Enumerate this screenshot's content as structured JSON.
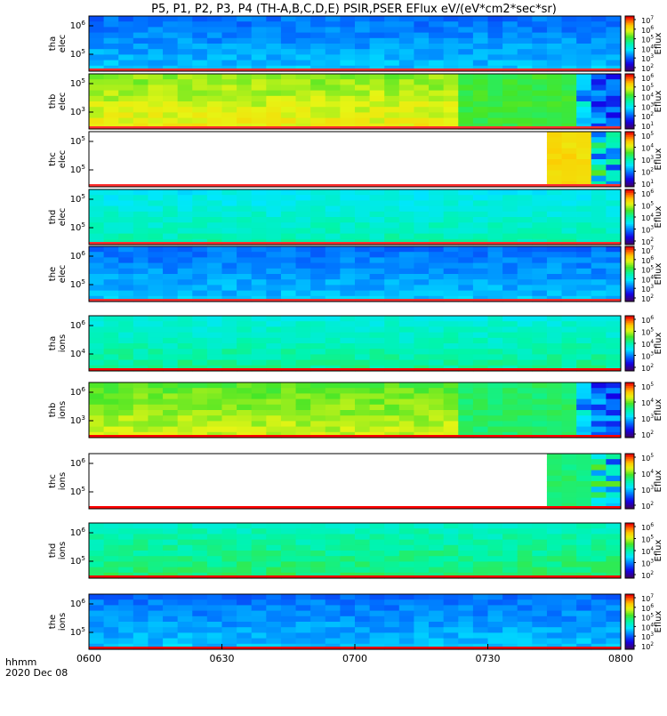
{
  "title": "P5, P1, P2, P3, P4 (TH-A,B,C,D,E) PSIR,PSER EFlux eV/(eV*cm2*sec*sr)",
  "chart_data": {
    "type": "heatmap",
    "x_ticks": [
      "0600",
      "0630",
      "0700",
      "0730",
      "0800"
    ],
    "x_range": [
      "0600",
      "0800"
    ],
    "x_label": "hhmm",
    "date_label": "2020 Dec 08",
    "colorbar_label": "Eflux",
    "panels": [
      {
        "label_line1": "tha",
        "label_line2": "elec",
        "y_ticks": [
          "10^6",
          "10^5"
        ],
        "colorbar_ticks": [
          "10^7",
          "10^6",
          "10^5",
          "10^4",
          "10^3",
          "10^2"
        ],
        "level": 0.3,
        "pattern": "uniform"
      },
      {
        "label_line1": "thb",
        "label_line2": "elec",
        "y_ticks": [
          "10^5",
          "10^3"
        ],
        "colorbar_ticks": [
          "10^6",
          "10^5",
          "10^4",
          "10^3",
          "10^2",
          "10^1"
        ],
        "level": 0.72,
        "pattern": "thb"
      },
      {
        "label_line1": "thc",
        "label_line2": "elec",
        "y_ticks": [
          "10^5",
          "10^5"
        ],
        "colorbar_ticks": [
          "10^5",
          "10^4",
          "10^3",
          "10^2",
          "10^1"
        ],
        "level": 0.75,
        "pattern": "thc"
      },
      {
        "label_line1": "thd",
        "label_line2": "elec",
        "y_ticks": [
          "10^5",
          "10^5"
        ],
        "colorbar_ticks": [
          "10^6",
          "10^5",
          "10^4",
          "10^3",
          "10^2"
        ],
        "level": 0.45,
        "pattern": "uniform"
      },
      {
        "label_line1": "the",
        "label_line2": "elec",
        "y_ticks": [
          "10^6",
          "10^5"
        ],
        "colorbar_ticks": [
          "10^7",
          "10^6",
          "10^5",
          "10^4",
          "10^3",
          "10^2"
        ],
        "level": 0.3,
        "pattern": "uniform"
      },
      {
        "label_line1": "tha",
        "label_line2": "ions",
        "y_ticks": [
          "10^6",
          "10^4"
        ],
        "colorbar_ticks": [
          "10^6",
          "10^5",
          "10^4",
          "10^3",
          "10^2"
        ],
        "level": 0.48,
        "pattern": "uniform"
      },
      {
        "label_line1": "thb",
        "label_line2": "ions",
        "y_ticks": [
          "10^6",
          "10^3"
        ],
        "colorbar_ticks": [
          "10^5",
          "10^4",
          "10^3",
          "10^2"
        ],
        "level": 0.68,
        "pattern": "thb"
      },
      {
        "label_line1": "thc",
        "label_line2": "ions",
        "y_ticks": [
          "10^6",
          "10^5"
        ],
        "colorbar_ticks": [
          "10^5",
          "10^4",
          "10^3",
          "10^2"
        ],
        "level": 0.5,
        "pattern": "thc"
      },
      {
        "label_line1": "thd",
        "label_line2": "ions",
        "y_ticks": [
          "10^6",
          "10^5"
        ],
        "colorbar_ticks": [
          "10^6",
          "10^5",
          "10^4",
          "10^3",
          "10^2"
        ],
        "level": 0.52,
        "pattern": "uniform"
      },
      {
        "label_line1": "the",
        "label_line2": "ions",
        "y_ticks": [
          "10^6",
          "10^5"
        ],
        "colorbar_ticks": [
          "10^7",
          "10^6",
          "10^5",
          "10^4",
          "10^3",
          "10^2"
        ],
        "level": 0.3,
        "pattern": "uniform"
      }
    ]
  }
}
